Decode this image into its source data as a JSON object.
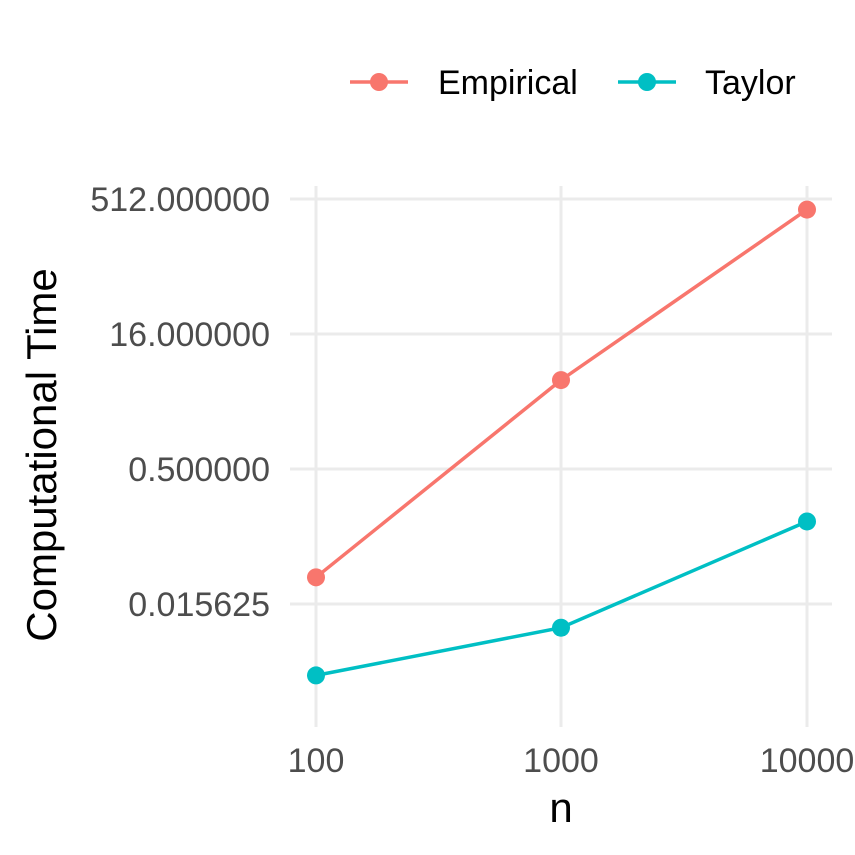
{
  "chart_data": {
    "type": "line",
    "x": [
      100,
      1000,
      10000
    ],
    "x_tick_labels": [
      "100",
      "1000",
      "10000"
    ],
    "xlabel": "n",
    "ylabel": "Computational Time",
    "y_scale": "log2",
    "y_ticks": [
      0.015625,
      0.5,
      16,
      512
    ],
    "y_tick_labels": [
      "0.015625",
      "0.500000",
      "16.000000",
      "512.000000"
    ],
    "ylim": [
      0.0012,
      1030
    ],
    "grid": true,
    "legend_position": "top",
    "series": [
      {
        "name": "Empirical",
        "color": "#F8766D",
        "values": [
          0.031,
          4.9,
          390
        ]
      },
      {
        "name": "Taylor",
        "color": "#00BFC4",
        "values": [
          0.0025,
          0.0085,
          0.13
        ]
      }
    ]
  }
}
